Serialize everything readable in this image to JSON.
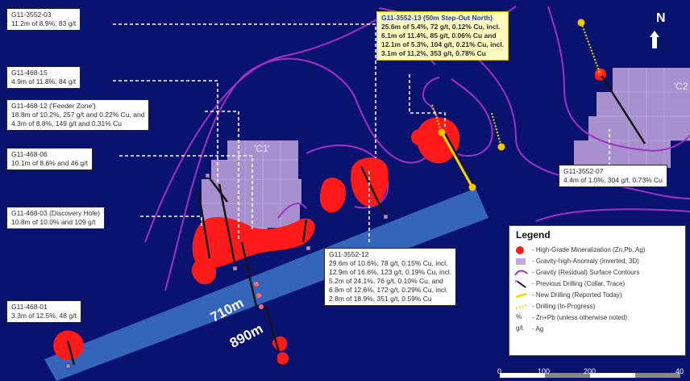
{
  "callouts": [
    {
      "hole": "G11-3552-03",
      "lines": [
        "11.2m of 8.9%, 83 g/t"
      ]
    },
    {
      "hole": "G11-468-15",
      "lines": [
        "4.9m of 11.8%, 84 g/t"
      ]
    },
    {
      "hole": "G11-468-12 ('Feeder Zone')",
      "lines": [
        "18.8m of 10.2%, 257 g/t and 0.22% Cu, and",
        "4.3m of 8.8%, 149 g/t and 0.31% Cu"
      ]
    },
    {
      "hole": "G11-468-06",
      "lines": [
        "10.1m of 8.6% and 46 g/t"
      ]
    },
    {
      "hole": "G11-468-03 (Discovery Hole)",
      "lines": [
        "10.8m of 10.0% and 109 g/t"
      ]
    },
    {
      "hole": "G11-468-01",
      "lines": [
        "3.3m of 12.5%, 48 g/t"
      ]
    },
    {
      "hole": "G11-3552-13 (50m Step-Out North)",
      "lines": [
        "25.6m of 5.4%, 72 g/t, 0.12% Cu, incl.",
        "6.1m of 11.4%, 85 g/t, 0.06% Cu and",
        "12.1m of 5.3%, 104 g/t, 0.21% Cu, incl.",
        "3.1m of 11.2%, 353 g/t, 0.78% Cu"
      ]
    },
    {
      "hole": "G11-3552-07",
      "lines": [
        "4.4m of 1.0%, 304 g/t, 0.73% Cu"
      ]
    },
    {
      "hole": "G11-3552-12",
      "lines": [
        "29.6m of 10.6%, 78 g/t, 0.15% Cu, incl.",
        "12.9m of 16.6%, 123 g/t, 0.19% Cu, incl.",
        "5.2m of 24.1%, 76 g/t, 0.10% Cu, and",
        "6.8m of 12.6%, 172 g/t, 0.29% Cu, incl.",
        "2.8m of 18.9%, 351 g/t, 0.59% Cu"
      ]
    }
  ],
  "legend": {
    "title": "Legend",
    "items": [
      {
        "symbol": "high-grade-icon",
        "label": "- High-Grade Mineralization (Zn,Pb, Ag)"
      },
      {
        "symbol": "gravity-anomaly-icon",
        "label": "- Gravity-high-Anomaly (Inverted, 3D)"
      },
      {
        "symbol": "gravity-contour-icon",
        "label": "- Gravity (Residual) Surface Contours"
      },
      {
        "symbol": "previous-drilling-icon",
        "label": "- Previous Drilling (Collar, Trace)"
      },
      {
        "symbol": "new-drilling-icon",
        "label": "- New Drilling (Reported Today)"
      },
      {
        "symbol": "inprogress-drilling-icon",
        "label": "- Drilling (In-Progress)"
      },
      {
        "symbol_text": "%",
        "label": "- Zn+Pb (unless otherwise noted)"
      },
      {
        "symbol_text": "g/t",
        "label": "- Ag"
      }
    ]
  },
  "labels": {
    "anomaly_c1": "'C1'",
    "anomaly_c2": "'C2",
    "depth_710": "710m",
    "depth_890": "890m",
    "north": "N"
  },
  "scale": {
    "ticks": [
      "0",
      "100",
      "200",
      "40"
    ]
  },
  "colors": {
    "background": "#0a1270",
    "mineralization": "#ff1a1a",
    "anomaly": "#c4a6e0",
    "contour": "#a030c8",
    "new_drilling": "#f5d800",
    "band": "#3c74c8"
  }
}
